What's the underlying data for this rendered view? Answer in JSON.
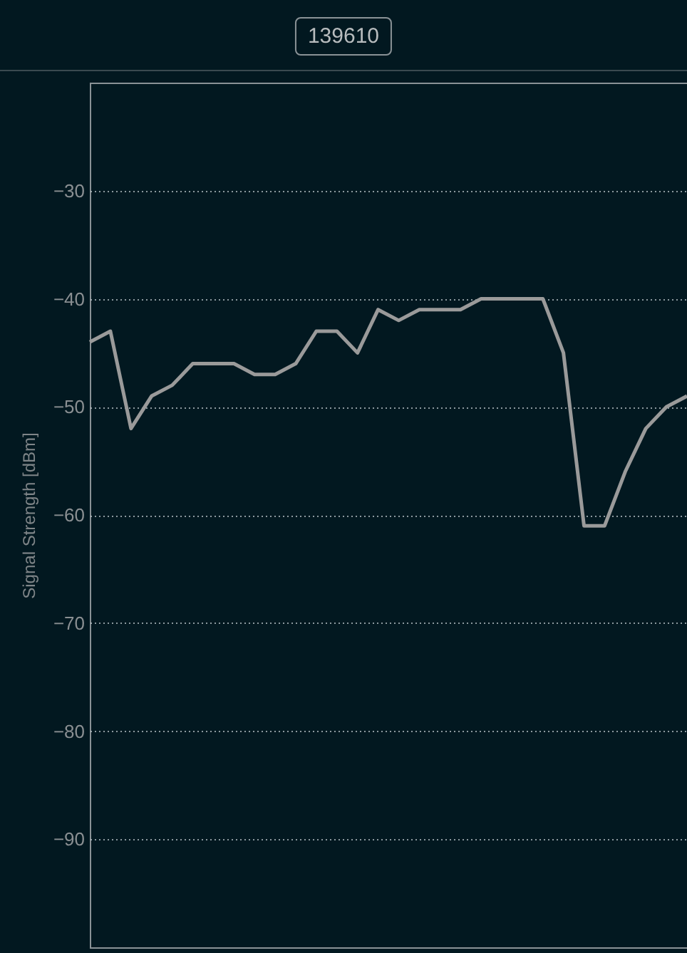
{
  "chart_data": {
    "type": "line",
    "title": "139610",
    "ylabel": "Signal Strength [dBm]",
    "categories": [
      null,
      null,
      null,
      null,
      null,
      null,
      null,
      null,
      null,
      null,
      null,
      null,
      null,
      null,
      null,
      null,
      null,
      null,
      null,
      null,
      null,
      null,
      null,
      null,
      null,
      null,
      null,
      null,
      null,
      null
    ],
    "series": [
      {
        "color": "#9a9a9a",
        "values": [
          -44,
          -43,
          -52,
          -49,
          -48,
          -46,
          -46,
          -46,
          -47,
          -47,
          -46,
          -43,
          -43,
          -45,
          -41,
          -42,
          -41,
          -41,
          -41,
          -40,
          -40,
          -40,
          -40,
          -45,
          -61,
          -61,
          -56,
          -52,
          -50,
          -49
        ]
      }
    ],
    "ylim": [
      -100,
      -20
    ],
    "yticks": [
      -90,
      -80,
      -70,
      -60,
      -50,
      -40,
      -30
    ],
    "grid": "y",
    "marker": "none",
    "line_style": "solid",
    "legend": false
  }
}
